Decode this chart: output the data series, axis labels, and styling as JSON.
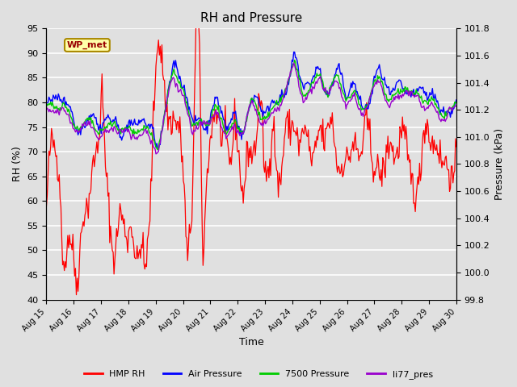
{
  "title": "RH and Pressure",
  "xlabel": "Time",
  "ylabel_left": "RH (%)",
  "ylabel_right": "Pressure (kPa)",
  "ylim_left": [
    40,
    95
  ],
  "ylim_right": [
    99.8,
    101.8
  ],
  "yticks_left": [
    40,
    45,
    50,
    55,
    60,
    65,
    70,
    75,
    80,
    85,
    90,
    95
  ],
  "yticks_right": [
    99.8,
    100.0,
    100.2,
    100.4,
    100.6,
    100.8,
    101.0,
    101.2,
    101.4,
    101.6,
    101.8
  ],
  "x_labels": [
    "Aug 15",
    "Aug 16",
    "Aug 17",
    "Aug 18",
    "Aug 19",
    "Aug 20",
    "Aug 21",
    "Aug 22",
    "Aug 23",
    "Aug 24",
    "Aug 25",
    "Aug 26",
    "Aug 27",
    "Aug 28",
    "Aug 29",
    "Aug 30"
  ],
  "annotation_text": "WP_met",
  "annotation_bg": "#ffffaa",
  "annotation_fg": "#990000",
  "bg_color": "#e0e0e0",
  "colors": {
    "HMP_RH": "#ff0000",
    "Air_Pressure": "#0000ff",
    "7500_Pressure": "#00cc00",
    "li77_pres": "#9900cc"
  },
  "legend_labels": [
    "HMP RH",
    "Air Pressure",
    "7500 Pressure",
    "li77_pres"
  ],
  "legend_colors": [
    "#ff0000",
    "#0000ff",
    "#00cc00",
    "#9900cc"
  ],
  "n_points": 480,
  "seed": 42
}
